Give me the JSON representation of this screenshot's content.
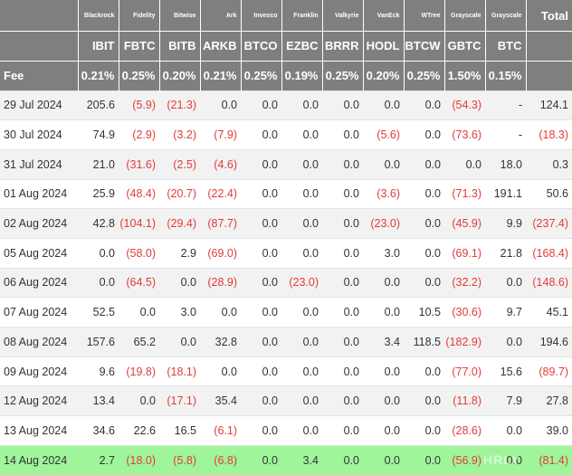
{
  "table": {
    "issuers": [
      "Blackrock",
      "Fidelity",
      "Bitwise",
      "Ark",
      "Invesco",
      "Franklin",
      "Valkyrie",
      "VanEck",
      "WTree",
      "Grayscale",
      "Grayscale"
    ],
    "total_label": "Total",
    "tickers": [
      "IBIT",
      "FBTC",
      "BITB",
      "ARKB",
      "BTCO",
      "EZBC",
      "BRRR",
      "HODL",
      "BTCW",
      "GBTC",
      "BTC"
    ],
    "fee_label": "Fee",
    "fees": [
      "0.21%",
      "0.25%",
      "0.20%",
      "0.21%",
      "0.25%",
      "0.19%",
      "0.25%",
      "0.20%",
      "0.25%",
      "1.50%",
      "0.15%"
    ],
    "rows": [
      {
        "date": "29 Jul 2024",
        "values": [
          "205.6",
          "(5.9)",
          "(21.3)",
          "0.0",
          "0.0",
          "0.0",
          "0.0",
          "0.0",
          "0.0",
          "(54.3)",
          "-"
        ],
        "total": "124.1"
      },
      {
        "date": "30 Jul 2024",
        "values": [
          "74.9",
          "(2.9)",
          "(3.2)",
          "(7.9)",
          "0.0",
          "0.0",
          "0.0",
          "(5.6)",
          "0.0",
          "(73.6)",
          "-"
        ],
        "total": "(18.3)"
      },
      {
        "date": "31 Jul 2024",
        "values": [
          "21.0",
          "(31.6)",
          "(2.5)",
          "(4.6)",
          "0.0",
          "0.0",
          "0.0",
          "0.0",
          "0.0",
          "0.0",
          "18.0"
        ],
        "total": "0.3"
      },
      {
        "date": "01 Aug 2024",
        "values": [
          "25.9",
          "(48.4)",
          "(20.7)",
          "(22.4)",
          "0.0",
          "0.0",
          "0.0",
          "(3.6)",
          "0.0",
          "(71.3)",
          "191.1"
        ],
        "total": "50.6"
      },
      {
        "date": "02 Aug 2024",
        "values": [
          "42.8",
          "(104.1)",
          "(29.4)",
          "(87.7)",
          "0.0",
          "0.0",
          "0.0",
          "(23.0)",
          "0.0",
          "(45.9)",
          "9.9"
        ],
        "total": "(237.4)"
      },
      {
        "date": "05 Aug 2024",
        "values": [
          "0.0",
          "(58.0)",
          "2.9",
          "(69.0)",
          "0.0",
          "0.0",
          "0.0",
          "3.0",
          "0.0",
          "(69.1)",
          "21.8"
        ],
        "total": "(168.4)"
      },
      {
        "date": "06 Aug 2024",
        "values": [
          "0.0",
          "(64.5)",
          "0.0",
          "(28.9)",
          "0.0",
          "(23.0)",
          "0.0",
          "0.0",
          "0.0",
          "(32.2)",
          "0.0"
        ],
        "total": "(148.6)"
      },
      {
        "date": "07 Aug 2024",
        "values": [
          "52.5",
          "0.0",
          "3.0",
          "0.0",
          "0.0",
          "0.0",
          "0.0",
          "0.0",
          "10.5",
          "(30.6)",
          "9.7"
        ],
        "total": "45.1"
      },
      {
        "date": "08 Aug 2024",
        "values": [
          "157.6",
          "65.2",
          "0.0",
          "32.8",
          "0.0",
          "0.0",
          "0.0",
          "3.4",
          "118.5",
          "(182.9)",
          "0.0"
        ],
        "total": "194.6"
      },
      {
        "date": "09 Aug 2024",
        "values": [
          "9.6",
          "(19.8)",
          "(18.1)",
          "0.0",
          "0.0",
          "0.0",
          "0.0",
          "0.0",
          "0.0",
          "(77.0)",
          "15.6"
        ],
        "total": "(89.7)"
      },
      {
        "date": "12 Aug 2024",
        "values": [
          "13.4",
          "0.0",
          "(17.1)",
          "35.4",
          "0.0",
          "0.0",
          "0.0",
          "0.0",
          "0.0",
          "(11.8)",
          "7.9"
        ],
        "total": "27.8"
      },
      {
        "date": "13 Aug 2024",
        "values": [
          "34.6",
          "22.6",
          "16.5",
          "(6.1)",
          "0.0",
          "0.0",
          "0.0",
          "0.0",
          "0.0",
          "(28.6)",
          "0.0"
        ],
        "total": "39.0"
      },
      {
        "date": "14 Aug 2024",
        "values": [
          "2.7",
          "(18.0)",
          "(5.8)",
          "(6.8)",
          "0.0",
          "3.4",
          "0.0",
          "0.0",
          "0.0",
          "(56.9)",
          "0.0"
        ],
        "total": "(81.4)",
        "highlight": true
      }
    ]
  },
  "colors": {
    "header_bg": "#7f7f7f",
    "negative": "#e23b3b",
    "stripe": "#f2f2f2",
    "highlight_row": "#9ff59a"
  },
  "watermark": "HRLY"
}
